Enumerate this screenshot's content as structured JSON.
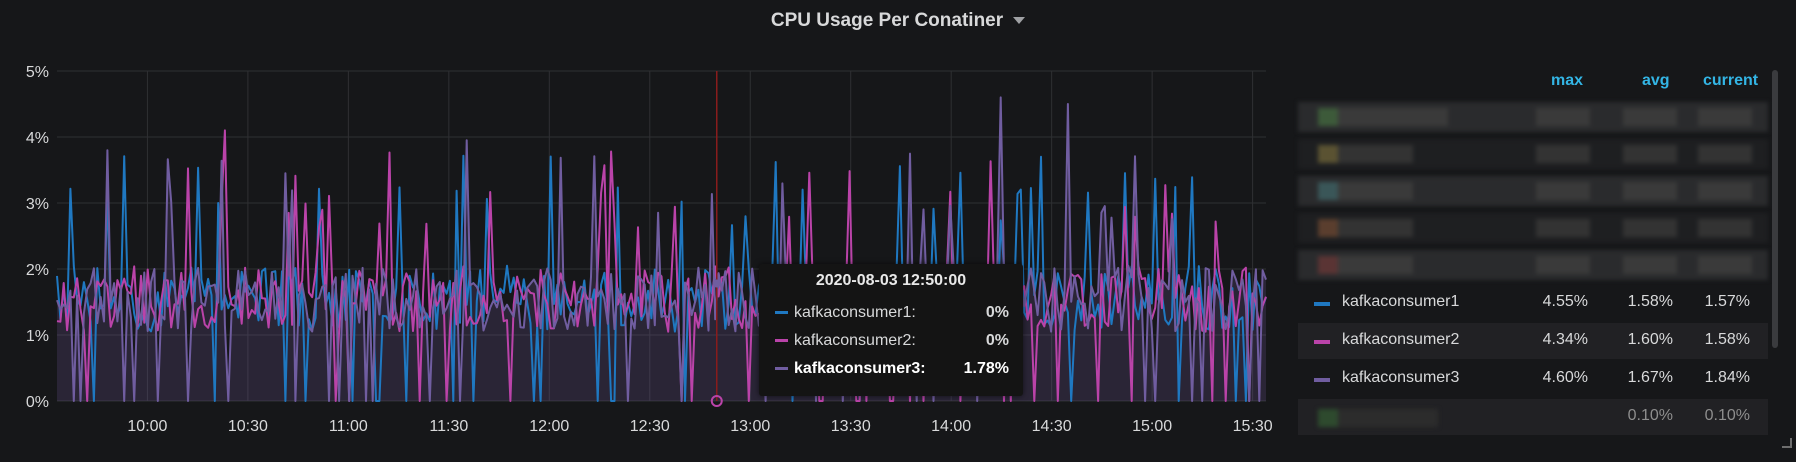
{
  "panel": {
    "title": "CPU Usage Per Conatiner"
  },
  "chart_data": {
    "type": "line",
    "ylim": [
      0,
      5
    ],
    "y_ticks": [
      "0%",
      "1%",
      "2%",
      "3%",
      "4%",
      "5%"
    ],
    "x_ticks": [
      "10:00",
      "10:30",
      "11:00",
      "11:30",
      "12:00",
      "12:30",
      "13:00",
      "13:30",
      "14:00",
      "14:30",
      "15:00",
      "15:30"
    ],
    "x_start": "09:33",
    "x_end": "15:34",
    "crosshair_time": "12:50",
    "grid": true,
    "legend_position": "right",
    "series": [
      {
        "name": "kafkaconsumer1",
        "color": "#1f78c1",
        "max": "4.55%",
        "avg": "1.58%",
        "current": "1.57%"
      },
      {
        "name": "kafkaconsumer2",
        "color": "#ba43a9",
        "max": "4.34%",
        "avg": "1.60%",
        "current": "1.58%"
      },
      {
        "name": "kafkaconsumer3",
        "color": "#705da0",
        "max": "4.60%",
        "avg": "1.67%",
        "current": "1.84%"
      }
    ]
  },
  "tooltip": {
    "time": "2020-08-03 12:50:00",
    "rows": [
      {
        "name": "kafkaconsumer1:",
        "value": "0%",
        "color": "#1f78c1"
      },
      {
        "name": "kafkaconsumer2:",
        "value": "0%",
        "color": "#ba43a9"
      },
      {
        "name": "kafkaconsumer3:",
        "value": "1.78%",
        "color": "#705da0"
      }
    ]
  },
  "legend": {
    "headers": {
      "max": "max",
      "avg": "avg",
      "current": "current"
    },
    "extra_row": {
      "avg": "0.10%",
      "current": "0.10%"
    }
  }
}
